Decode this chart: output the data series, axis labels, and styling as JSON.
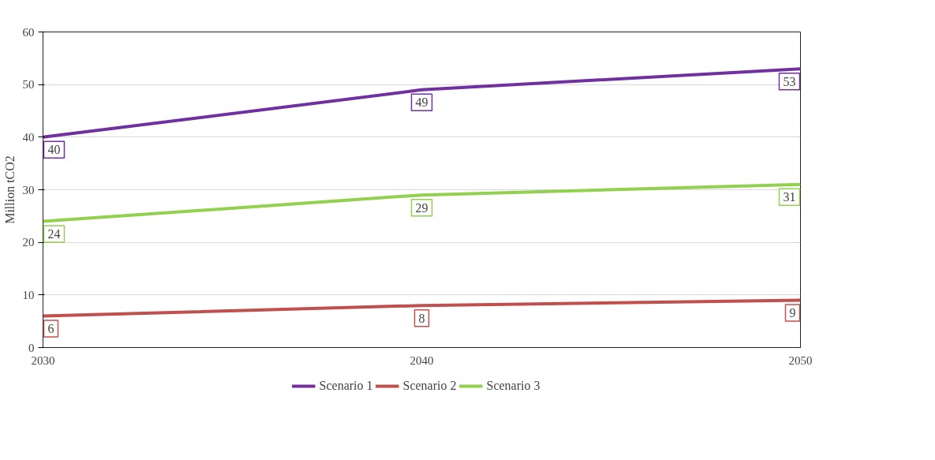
{
  "chart_data": {
    "type": "line",
    "ylabel": "Million tCO2",
    "x": [
      2030,
      2040,
      2050
    ],
    "xlim": [
      2030,
      2050
    ],
    "xticks": [
      2030,
      2040,
      2050
    ],
    "ylim": [
      0,
      60
    ],
    "yticks": [
      0,
      10,
      20,
      30,
      40,
      50,
      60
    ],
    "series": [
      {
        "name": "Scenario 1",
        "color": "#7030a0",
        "values": [
          40,
          49,
          53
        ]
      },
      {
        "name": "Scenario 2",
        "color": "#c0504d",
        "values": [
          6,
          8,
          9
        ]
      },
      {
        "name": "Scenario 3",
        "color": "#92d050",
        "values": [
          24,
          29,
          31
        ]
      }
    ],
    "data_labels": true,
    "grid": "y",
    "legend": "bottom",
    "line_style": "solid"
  }
}
